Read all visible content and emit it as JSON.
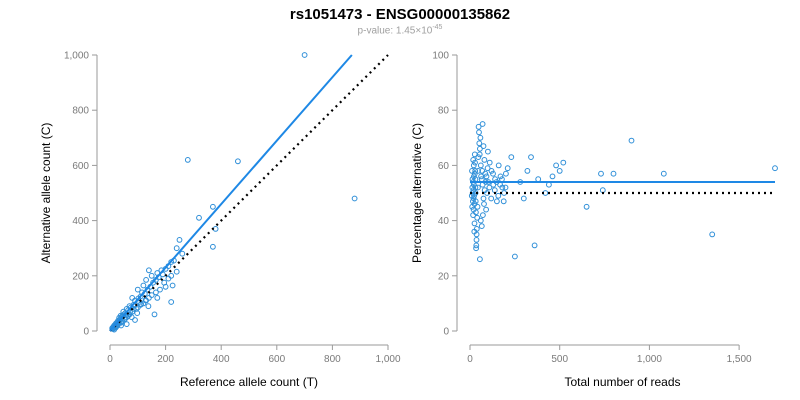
{
  "title": "rs1051473 - ENSG00000135862",
  "subtitle": {
    "prefix": "p-value: 1.45×10",
    "exponent": "-45"
  },
  "colors": {
    "points": "#2f8fd8",
    "fit_line": "#1e88e5",
    "reference_line": "#000000"
  },
  "chart_data": [
    {
      "type": "scatter",
      "title": "",
      "xlabel": "Reference allele count (T)",
      "ylabel": "Alternative allele count (C)",
      "xlim": [
        0,
        1000
      ],
      "ylim": [
        0,
        1000
      ],
      "xticks": [
        0,
        200,
        400,
        600,
        800,
        1000
      ],
      "xtick_labels": [
        "0",
        "200",
        "400",
        "600",
        "800",
        "1,000"
      ],
      "yticks": [
        0,
        200,
        400,
        600,
        800,
        1000
      ],
      "ytick_labels": [
        "0",
        "200",
        "400",
        "600",
        "800",
        "1,000"
      ],
      "grid": false,
      "series": [
        {
          "points": [
            [
              700,
              1000
            ],
            [
              280,
              620
            ],
            [
              460,
              615
            ],
            [
              880,
              480
            ],
            [
              320,
              410
            ],
            [
              370,
              450
            ],
            [
              380,
              370
            ],
            [
              370,
              305
            ],
            [
              250,
              330
            ],
            [
              240,
              300
            ],
            [
              230,
              255
            ],
            [
              220,
              250
            ],
            [
              210,
              235
            ],
            [
              200,
              225
            ],
            [
              220,
              200
            ],
            [
              170,
              210
            ],
            [
              150,
              200
            ],
            [
              140,
              220
            ],
            [
              130,
              185
            ],
            [
              120,
              165
            ],
            [
              115,
              140
            ],
            [
              110,
              125
            ],
            [
              100,
              150
            ],
            [
              90,
              110
            ],
            [
              85,
              95
            ],
            [
              80,
              120
            ],
            [
              75,
              85
            ],
            [
              70,
              90
            ],
            [
              65,
              75
            ],
            [
              60,
              80
            ],
            [
              55,
              65
            ],
            [
              50,
              60
            ],
            [
              48,
              70
            ],
            [
              45,
              55
            ],
            [
              42,
              50
            ],
            [
              40,
              45
            ],
            [
              38,
              55
            ],
            [
              35,
              40
            ],
            [
              33,
              48
            ],
            [
              30,
              38
            ],
            [
              28,
              35
            ],
            [
              25,
              30
            ],
            [
              22,
              28
            ],
            [
              20,
              25
            ],
            [
              18,
              22
            ],
            [
              16,
              18
            ],
            [
              15,
              20
            ],
            [
              14,
              16
            ],
            [
              12,
              15
            ],
            [
              12,
              10
            ],
            [
              10,
              12
            ],
            [
              10,
              8
            ],
            [
              8,
              10
            ],
            [
              15,
              5
            ],
            [
              20,
              12
            ],
            [
              25,
              18
            ],
            [
              30,
              25
            ],
            [
              40,
              30
            ],
            [
              55,
              45
            ],
            [
              60,
              50
            ],
            [
              70,
              60
            ],
            [
              80,
              70
            ],
            [
              95,
              80
            ],
            [
              110,
              95
            ],
            [
              130,
              110
            ],
            [
              150,
              130
            ],
            [
              165,
              140
            ],
            [
              180,
              150
            ],
            [
              200,
              160
            ],
            [
              220,
              105
            ],
            [
              160,
              60
            ],
            [
              90,
              40
            ],
            [
              60,
              25
            ],
            [
              40,
              20
            ],
            [
              100,
              85
            ],
            [
              120,
              100
            ],
            [
              140,
              120
            ],
            [
              175,
              195
            ],
            [
              195,
              175
            ],
            [
              260,
              280
            ],
            [
              185,
              220
            ],
            [
              155,
              175
            ],
            [
              135,
              150
            ],
            [
              125,
              135
            ],
            [
              105,
              105
            ],
            [
              85,
              80
            ],
            [
              65,
              55
            ],
            [
              52,
              42
            ],
            [
              35,
              30
            ],
            [
              28,
              22
            ],
            [
              22,
              15
            ],
            [
              18,
              12
            ],
            [
              13,
              9
            ],
            [
              45,
              35
            ],
            [
              58,
              58
            ],
            [
              72,
              68
            ],
            [
              88,
              92
            ],
            [
              102,
              118
            ],
            [
              112,
              98
            ],
            [
              128,
              112
            ],
            [
              145,
              160
            ],
            [
              165,
              185
            ],
            [
              190,
              205
            ],
            [
              210,
              190
            ],
            [
              240,
              215
            ],
            [
              225,
              165
            ],
            [
              170,
              120
            ],
            [
              138,
              90
            ],
            [
              98,
              65
            ],
            [
              78,
              50
            ]
          ]
        }
      ],
      "fit_line": [
        [
          0,
          0
        ],
        [
          870,
          1000
        ]
      ],
      "reference_line": [
        [
          0,
          0
        ],
        [
          1000,
          1000
        ]
      ]
    },
    {
      "type": "scatter",
      "title": "",
      "xlabel": "Total number of reads",
      "ylabel": "Percentage alternative (C)",
      "xlim": [
        0,
        1700
      ],
      "ylim": [
        0,
        100
      ],
      "xticks": [
        0,
        500,
        1000,
        1500
      ],
      "xtick_labels": [
        "0",
        "500",
        "1,000",
        "1,500"
      ],
      "yticks": [
        0,
        20,
        40,
        60,
        80,
        100
      ],
      "ytick_labels": [
        "0",
        "20",
        "40",
        "60",
        "80",
        "100"
      ],
      "grid": false,
      "series": [
        {
          "points": [
            [
              900,
              69
            ],
            [
              1700,
              59
            ],
            [
              1350,
              35
            ],
            [
              1080,
              57
            ],
            [
              730,
              57
            ],
            [
              800,
              57
            ],
            [
              740,
              51
            ],
            [
              650,
              45
            ],
            [
              520,
              61
            ],
            [
              500,
              58
            ],
            [
              480,
              60
            ],
            [
              460,
              56
            ],
            [
              440,
              53
            ],
            [
              420,
              50
            ],
            [
              380,
              55
            ],
            [
              360,
              31
            ],
            [
              340,
              63
            ],
            [
              320,
              58
            ],
            [
              300,
              48
            ],
            [
              280,
              54
            ],
            [
              250,
              27
            ],
            [
              230,
              63
            ],
            [
              210,
              59
            ],
            [
              200,
              57
            ],
            [
              190,
              50
            ],
            [
              180,
              52
            ],
            [
              170,
              56
            ],
            [
              160,
              60
            ],
            [
              150,
              47
            ],
            [
              140,
              55
            ],
            [
              130,
              53
            ],
            [
              120,
              58
            ],
            [
              110,
              61
            ],
            [
              100,
              65
            ],
            [
              95,
              50
            ],
            [
              90,
              44
            ],
            [
              85,
              57
            ],
            [
              80,
              62
            ],
            [
              75,
              48
            ],
            [
              70,
              53
            ],
            [
              65,
              55
            ],
            [
              60,
              60
            ],
            [
              58,
              70
            ],
            [
              55,
              66
            ],
            [
              52,
              68
            ],
            [
              50,
              72
            ],
            [
              48,
              74
            ],
            [
              46,
              63
            ],
            [
              45,
              58
            ],
            [
              44,
              52
            ],
            [
              42,
              45
            ],
            [
              40,
              41
            ],
            [
              38,
              37
            ],
            [
              37,
              35
            ],
            [
              36,
              33
            ],
            [
              35,
              31
            ],
            [
              34,
              30
            ],
            [
              33,
              43
            ],
            [
              32,
              47
            ],
            [
              31,
              50
            ],
            [
              30,
              52
            ],
            [
              30,
              55
            ],
            [
              29,
              58
            ],
            [
              28,
              61
            ],
            [
              27,
              64
            ],
            [
              26,
              57
            ],
            [
              25,
              46
            ],
            [
              25,
              39
            ],
            [
              24,
              36
            ],
            [
              23,
              49
            ],
            [
              22,
              53
            ],
            [
              22,
              56
            ],
            [
              21,
              60
            ],
            [
              20,
              44
            ],
            [
              20,
              48
            ],
            [
              19,
              51
            ],
            [
              18,
              54
            ],
            [
              18,
              62
            ],
            [
              17,
              42
            ],
            [
              16,
              47
            ],
            [
              15,
              50
            ],
            [
              14,
              55
            ],
            [
              13,
              52
            ],
            [
              12,
              45
            ],
            [
              11,
              58
            ],
            [
              10,
              49
            ],
            [
              66,
              38
            ],
            [
              72,
              42
            ],
            [
              78,
              46
            ],
            [
              88,
              54
            ],
            [
              98,
              59
            ],
            [
              108,
              52
            ],
            [
              118,
              48
            ],
            [
              128,
              57
            ],
            [
              138,
              51
            ],
            [
              148,
              54
            ],
            [
              158,
              49
            ],
            [
              168,
              53
            ],
            [
              178,
              55
            ],
            [
              188,
              47
            ],
            [
              198,
              52
            ],
            [
              55,
              26
            ],
            [
              60,
              40
            ],
            [
              54,
              64
            ],
            [
              62,
              56
            ],
            [
              68,
              58
            ],
            [
              82,
              51
            ],
            [
              92,
              56
            ],
            [
              102,
              54
            ],
            [
              70,
              75
            ],
            [
              75,
              67
            ]
          ]
        }
      ],
      "fit_line": [
        [
          0,
          54
        ],
        [
          1700,
          54
        ]
      ],
      "reference_line": [
        [
          0,
          50
        ],
        [
          1700,
          50
        ]
      ]
    }
  ]
}
